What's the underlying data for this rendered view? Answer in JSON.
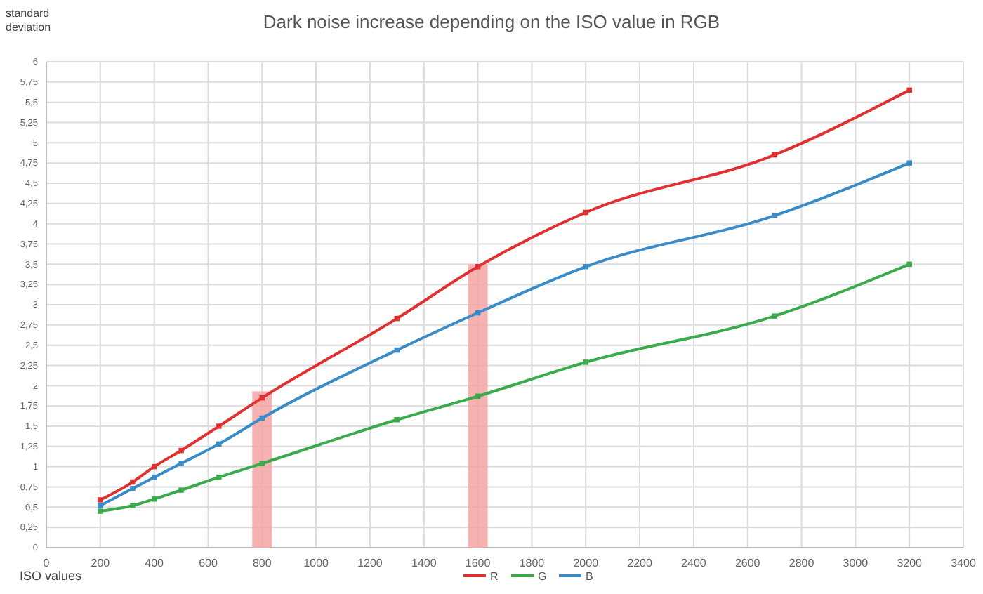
{
  "chart_data": {
    "type": "line",
    "title": "Dark noise increase depending on the ISO value in RGB",
    "xlabel": "ISO values",
    "ylabel": "standard deviation",
    "xlim": [
      0,
      3400
    ],
    "xticks": [
      0,
      200,
      400,
      600,
      800,
      1000,
      1200,
      1400,
      1600,
      1800,
      2000,
      2200,
      2400,
      2600,
      2800,
      3000,
      3200,
      3400
    ],
    "ylim": [
      0,
      6
    ],
    "yticks": [
      0,
      {
        "value": 0.25,
        "label": "0,25"
      },
      {
        "value": 0.5,
        "label": "0,5"
      },
      {
        "value": 0.75,
        "label": "0,75"
      },
      1,
      {
        "value": 1.25,
        "label": "1,25"
      },
      {
        "value": 1.5,
        "label": "1,5"
      },
      {
        "value": 1.75,
        "label": "1,75"
      },
      2,
      {
        "value": 2.25,
        "label": "2,25"
      },
      {
        "value": 2.5,
        "label": "2,5"
      },
      {
        "value": 2.75,
        "label": "2,75"
      },
      3,
      {
        "value": 3.25,
        "label": "3,25"
      },
      {
        "value": 3.5,
        "label": "3,5"
      },
      {
        "value": 3.75,
        "label": "3,75"
      },
      4,
      {
        "value": 4.25,
        "label": "4,25"
      },
      {
        "value": 4.5,
        "label": "4,5"
      },
      {
        "value": 4.75,
        "label": "4,75"
      },
      5,
      {
        "value": 5.25,
        "label": "5,25"
      },
      {
        "value": 5.5,
        "label": "5,5"
      },
      {
        "value": 5.75,
        "label": "5,75"
      },
      6
    ],
    "grid": true,
    "legend": "bottom",
    "marker": "square",
    "line_style": "solid",
    "series": [
      {
        "type": "bar",
        "color": "#f4a3a3",
        "x": [
          800,
          1600
        ],
        "values": [
          1.93,
          3.5
        ]
      },
      {
        "name": "R",
        "color": "#e03030",
        "x": [
          200,
          320,
          400,
          500,
          640,
          800,
          1300,
          1600,
          2000,
          2700,
          3200
        ],
        "values": [
          0.59,
          0.81,
          1.0,
          1.2,
          1.5,
          1.85,
          2.83,
          3.47,
          4.14,
          4.85,
          5.65
        ]
      },
      {
        "name": "G",
        "color": "#3aaa4a",
        "x": [
          200,
          320,
          400,
          500,
          640,
          800,
          1300,
          1600,
          2000,
          2700,
          3200
        ],
        "values": [
          0.45,
          0.52,
          0.6,
          0.71,
          0.87,
          1.04,
          1.58,
          1.87,
          2.29,
          2.86,
          3.5
        ]
      },
      {
        "name": "B",
        "color": "#3a8cc8",
        "x": [
          200,
          320,
          400,
          500,
          640,
          800,
          1300,
          1600,
          2000,
          2700,
          3200
        ],
        "values": [
          0.52,
          0.73,
          0.87,
          1.04,
          1.28,
          1.6,
          2.44,
          2.9,
          3.47,
          4.1,
          4.75
        ]
      }
    ]
  }
}
